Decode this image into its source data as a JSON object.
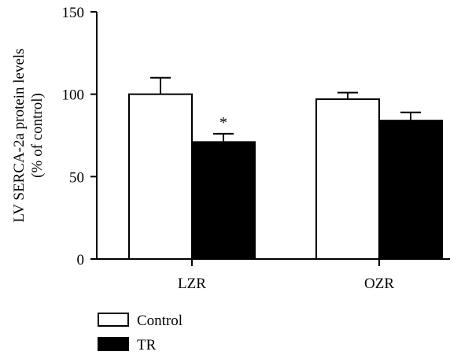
{
  "chart_data": {
    "type": "bar",
    "categories": [
      "LZR",
      "OZR"
    ],
    "series": [
      {
        "name": "Control",
        "values": [
          100,
          97
        ],
        "errors": [
          10,
          4
        ],
        "fill": "#ffffff"
      },
      {
        "name": "TR",
        "values": [
          71,
          84
        ],
        "errors": [
          5,
          5
        ],
        "fill": "#000000"
      }
    ],
    "ylabel_lines": [
      "LV SERCA-2a protein levels",
      "(% of control)"
    ],
    "ylim": [
      0,
      150
    ],
    "yticks": [
      0,
      50,
      100,
      150
    ],
    "annotations": [
      {
        "series": 1,
        "category": 0,
        "text": "*"
      }
    ],
    "legend": {
      "placement": "bottom-left"
    },
    "grid": false
  }
}
